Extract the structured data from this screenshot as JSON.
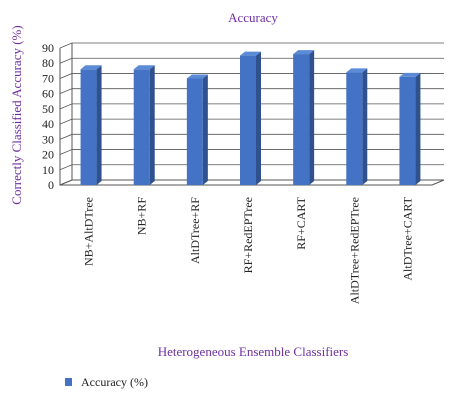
{
  "chart_data": {
    "type": "bar",
    "title": "Accuracy",
    "xlabel": "Heterogeneous Ensemble Classifiers",
    "ylabel": "Correctly Classified Accuracy (%)",
    "categories": [
      "NB+AltDTree",
      "NB+RF",
      "AltDTree+RF",
      "RF+RedEPTree",
      "RF+CART",
      "AltDTree+RedEPTree",
      "AltDTree+CART"
    ],
    "series": [
      {
        "name": "Accuracy (%)",
        "values": [
          76,
          76,
          70,
          85,
          86,
          74,
          71
        ]
      }
    ],
    "ylim": [
      0,
      90
    ],
    "yticks": [
      "0",
      "10",
      "20",
      "30",
      "40",
      "50",
      "60",
      "70",
      "80",
      "90"
    ],
    "grid": true,
    "legend_position": "bottom-left",
    "colors": {
      "bar_front": "#4472c4",
      "bar_side": "#2f528f",
      "bar_top": "#5b8bd6",
      "text": "#7030a0"
    }
  }
}
